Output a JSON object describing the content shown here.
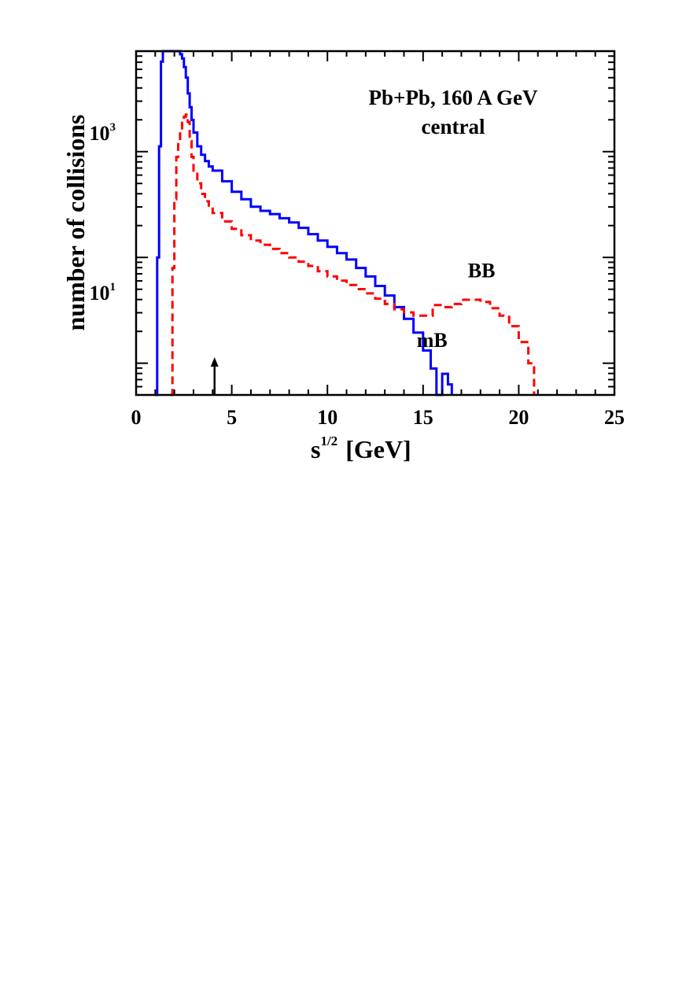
{
  "chart_data": {
    "type": "line",
    "title": "Pb+Pb,  160 A GeV",
    "subtitle": "central",
    "xlabel_base": "s",
    "xlabel_sup": "1/2",
    "xlabel_unit": "[GeV]",
    "ylabel": "number of collisions",
    "xlim": [
      0,
      25
    ],
    "ylim_log10": [
      -0.3,
      2.95
    ],
    "yscale": "log10",
    "x_ticks": [
      0,
      5,
      10,
      15,
      20,
      25
    ],
    "x_tick_labels": [
      "0",
      "5",
      "10",
      "15",
      "20",
      "25"
    ],
    "y_tick_labels": [
      {
        "base": "10",
        "exp": "1",
        "log10": 1
      },
      {
        "base": "10",
        "exp": "3",
        "log10": 3
      }
    ],
    "arrow_marker_x": 4.1,
    "series": [
      {
        "name": "mB",
        "color": "#0000ff",
        "style": "solid",
        "label_anchor": {
          "x": 15.9,
          "log10": 0.2
        },
        "points": [
          [
            1.0,
            -0.4
          ],
          [
            1.1,
            1.0
          ],
          [
            1.2,
            2.05
          ],
          [
            1.3,
            2.85
          ],
          [
            1.4,
            3.0
          ],
          [
            1.5,
            3.35
          ],
          [
            1.6,
            3.45
          ],
          [
            1.7,
            3.43
          ],
          [
            1.8,
            3.3
          ],
          [
            1.9,
            3.15
          ],
          [
            2.0,
            3.05
          ],
          [
            2.1,
            3.02
          ],
          [
            2.2,
            2.98
          ],
          [
            2.3,
            2.92
          ],
          [
            2.4,
            2.88
          ],
          [
            2.5,
            2.8
          ],
          [
            2.6,
            2.7
          ],
          [
            2.7,
            2.55
          ],
          [
            2.8,
            2.42
          ],
          [
            2.9,
            2.3
          ],
          [
            3.0,
            2.18
          ],
          [
            3.2,
            2.05
          ],
          [
            3.4,
            1.97
          ],
          [
            3.6,
            1.91
          ],
          [
            3.8,
            1.86
          ],
          [
            4.0,
            1.82
          ],
          [
            4.5,
            1.72
          ],
          [
            5.0,
            1.62
          ],
          [
            5.5,
            1.55
          ],
          [
            6.0,
            1.48
          ],
          [
            6.5,
            1.44
          ],
          [
            7.0,
            1.41
          ],
          [
            7.5,
            1.37
          ],
          [
            8.0,
            1.33
          ],
          [
            8.5,
            1.28
          ],
          [
            9.0,
            1.22
          ],
          [
            9.5,
            1.16
          ],
          [
            10.0,
            1.1
          ],
          [
            10.5,
            1.04
          ],
          [
            11.0,
            0.98
          ],
          [
            11.5,
            0.9
          ],
          [
            12.0,
            0.82
          ],
          [
            12.5,
            0.73
          ],
          [
            13.0,
            0.64
          ],
          [
            13.5,
            0.53
          ],
          [
            14.0,
            0.42
          ],
          [
            14.5,
            0.29
          ],
          [
            15.0,
            0.12
          ],
          [
            15.4,
            -0.05
          ],
          [
            15.7,
            -0.3
          ],
          [
            16.0,
            -0.1
          ],
          [
            16.3,
            -0.2
          ],
          [
            16.5,
            -0.3
          ]
        ]
      },
      {
        "name": "BB",
        "color": "#ff0000",
        "style": "dashed",
        "label_anchor": {
          "x": 18.0,
          "log10": 0.85
        },
        "points": [
          [
            1.8,
            -0.4
          ],
          [
            1.9,
            0.9
          ],
          [
            2.0,
            1.55
          ],
          [
            2.1,
            1.95
          ],
          [
            2.2,
            2.1
          ],
          [
            2.3,
            2.2
          ],
          [
            2.4,
            2.3
          ],
          [
            2.5,
            2.33
          ],
          [
            2.6,
            2.35
          ],
          [
            2.7,
            2.28
          ],
          [
            2.8,
            2.1
          ],
          [
            2.9,
            1.95
          ],
          [
            3.0,
            1.82
          ],
          [
            3.2,
            1.7
          ],
          [
            3.4,
            1.6
          ],
          [
            3.6,
            1.53
          ],
          [
            3.8,
            1.46
          ],
          [
            4.0,
            1.42
          ],
          [
            4.5,
            1.34
          ],
          [
            5.0,
            1.27
          ],
          [
            5.5,
            1.21
          ],
          [
            6.0,
            1.16
          ],
          [
            6.5,
            1.12
          ],
          [
            7.0,
            1.08
          ],
          [
            7.5,
            1.04
          ],
          [
            8.0,
            1.0
          ],
          [
            8.5,
            0.96
          ],
          [
            9.0,
            0.92
          ],
          [
            9.5,
            0.87
          ],
          [
            10.0,
            0.82
          ],
          [
            10.5,
            0.78
          ],
          [
            11.0,
            0.74
          ],
          [
            11.5,
            0.7
          ],
          [
            12.0,
            0.66
          ],
          [
            12.5,
            0.61
          ],
          [
            13.0,
            0.56
          ],
          [
            13.5,
            0.51
          ],
          [
            14.0,
            0.48
          ],
          [
            14.5,
            0.45
          ],
          [
            15.0,
            0.45
          ],
          [
            15.5,
            0.55
          ],
          [
            16.0,
            0.53
          ],
          [
            16.5,
            0.56
          ],
          [
            17.0,
            0.6
          ],
          [
            17.5,
            0.6
          ],
          [
            18.0,
            0.58
          ],
          [
            18.5,
            0.52
          ],
          [
            19.0,
            0.45
          ],
          [
            19.5,
            0.35
          ],
          [
            20.0,
            0.2
          ],
          [
            20.5,
            0.0
          ],
          [
            20.8,
            -0.3
          ]
        ]
      }
    ]
  }
}
